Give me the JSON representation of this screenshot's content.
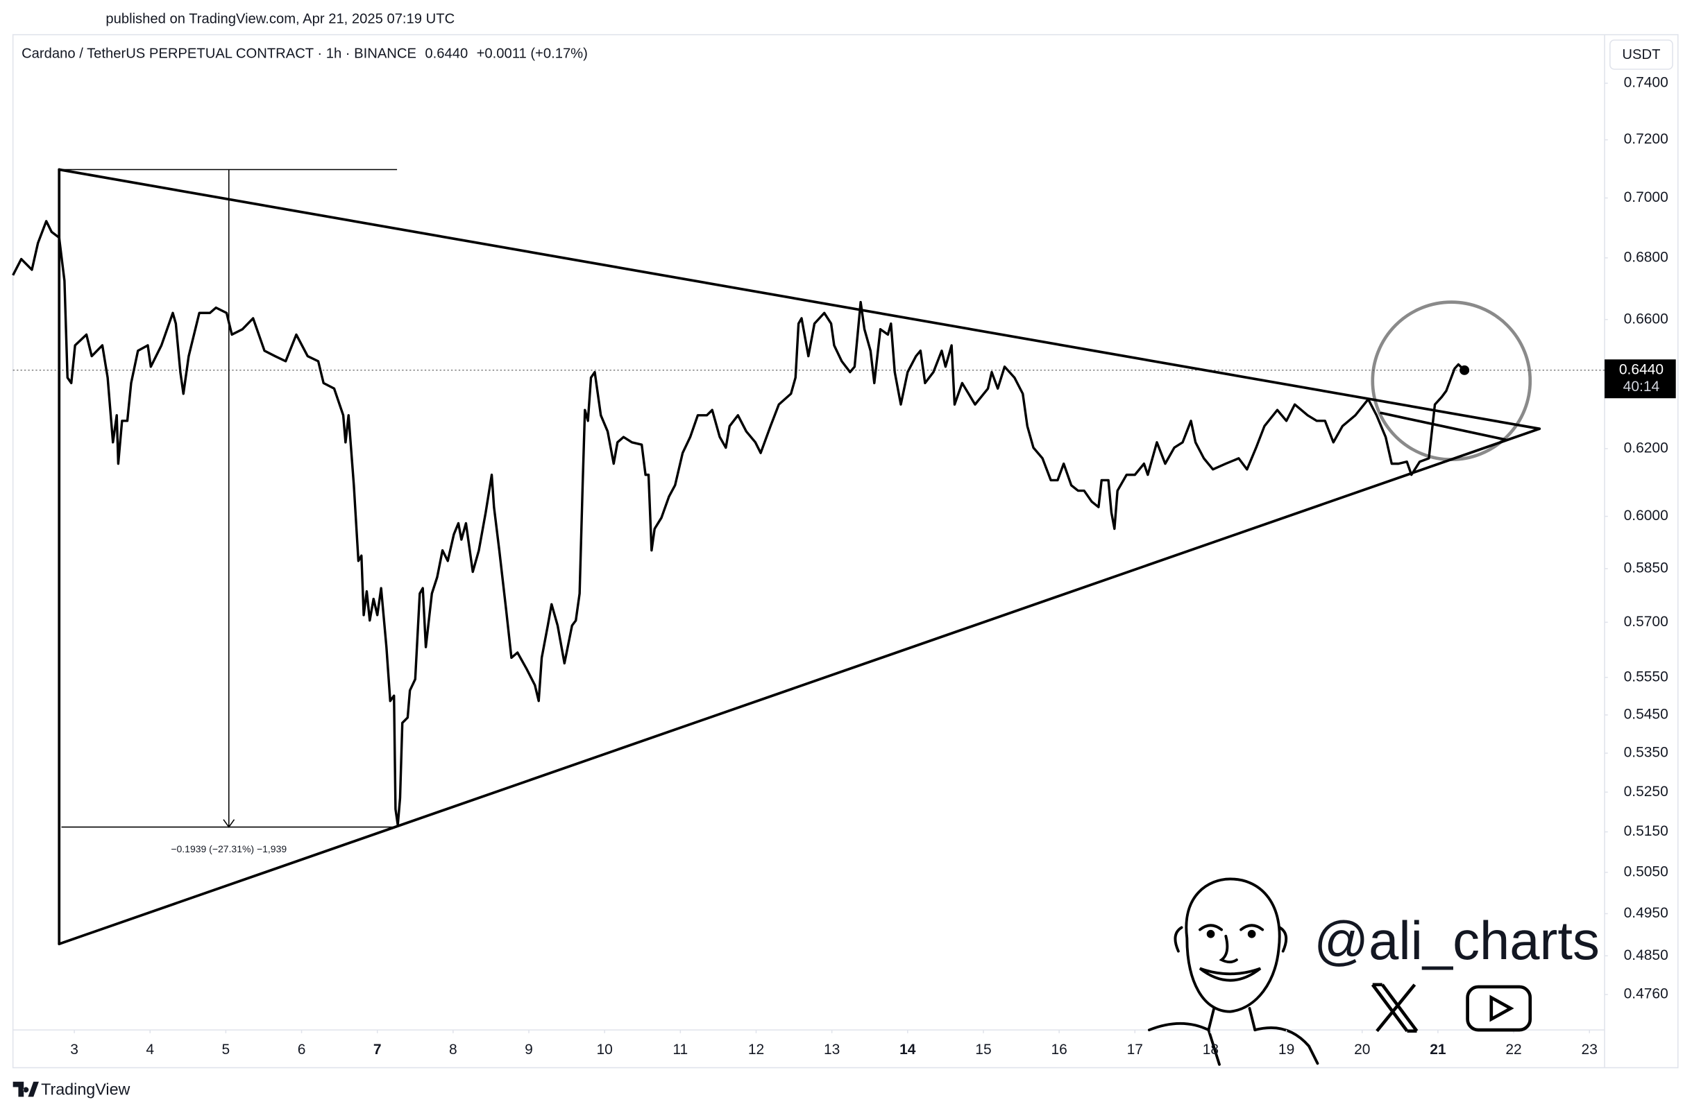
{
  "chart_data": {
    "type": "line",
    "published": "published on TradingView.com, Apr 21, 2025 07:19 UTC",
    "title": "Cardano / TetherUS PERPETUAL CONTRACT · 1h · BINANCE",
    "change": "+0.0011 (+0.17%)",
    "currency": "USDT",
    "countdown": "40:14",
    "watermark": "@ali_charts",
    "logo": "TradingView",
    "color": "#000000",
    "log_scale": true,
    "grid": false,
    "last_price": {
      "value": 0.644,
      "label": "0.6440"
    },
    "xlim": [
      2.19,
      23.2
    ],
    "ylim": [
      0.4679,
      0.7576
    ],
    "xticks": [
      3,
      4,
      5,
      6,
      7,
      8,
      9,
      10,
      11,
      12,
      13,
      14,
      15,
      16,
      17,
      18,
      19,
      20,
      21,
      22,
      23
    ],
    "xticks_bold": [
      7,
      14,
      21
    ],
    "yticks": [
      {
        "value": 0.74,
        "label": "0.7400"
      },
      {
        "value": 0.72,
        "label": "0.7200"
      },
      {
        "value": 0.7,
        "label": "0.7000"
      },
      {
        "value": 0.68,
        "label": "0.6800"
      },
      {
        "value": 0.66,
        "label": "0.6600"
      },
      {
        "value": 0.62,
        "label": "0.6200"
      },
      {
        "value": 0.6,
        "label": "0.6000"
      },
      {
        "value": 0.585,
        "label": "0.5850"
      },
      {
        "value": 0.57,
        "label": "0.5700"
      },
      {
        "value": 0.555,
        "label": "0.5550"
      },
      {
        "value": 0.545,
        "label": "0.5450"
      },
      {
        "value": 0.535,
        "label": "0.5350"
      },
      {
        "value": 0.525,
        "label": "0.5250"
      },
      {
        "value": 0.515,
        "label": "0.5150"
      },
      {
        "value": 0.505,
        "label": "0.5050"
      },
      {
        "value": 0.495,
        "label": "0.4950"
      },
      {
        "value": 0.485,
        "label": "0.4850"
      },
      {
        "value": 0.476,
        "label": "0.4760"
      }
    ],
    "x": [
      2.19,
      2.3,
      2.44,
      2.52,
      2.63,
      2.7,
      2.8,
      2.87,
      2.91,
      2.96,
      3.01,
      3.16,
      3.23,
      3.37,
      3.44,
      3.51,
      3.56,
      3.58,
      3.63,
      3.7,
      3.75,
      3.84,
      3.97,
      4.01,
      4.15,
      4.3,
      4.34,
      4.4,
      4.44,
      4.51,
      4.65,
      4.79,
      4.87,
      5.01,
      5.08,
      5.22,
      5.36,
      5.51,
      5.65,
      5.79,
      5.93,
      6.08,
      6.22,
      6.29,
      6.43,
      6.55,
      6.58,
      6.62,
      6.69,
      6.75,
      6.79,
      6.82,
      6.86,
      6.9,
      6.95,
      7.0,
      7.05,
      7.12,
      7.17,
      7.22,
      7.24,
      7.27,
      7.3,
      7.33,
      7.4,
      7.43,
      7.5,
      7.56,
      7.6,
      7.64,
      7.72,
      7.79,
      7.86,
      7.93,
      8.01,
      8.07,
      8.11,
      8.17,
      8.26,
      8.34,
      8.43,
      8.51,
      8.54,
      8.61,
      8.7,
      8.77,
      8.85,
      8.97,
      9.08,
      9.13,
      9.17,
      9.25,
      9.3,
      9.38,
      9.47,
      9.57,
      9.62,
      9.67,
      9.71,
      9.74,
      9.78,
      9.82,
      9.87,
      9.95,
      10.04,
      10.12,
      10.17,
      10.25,
      10.36,
      10.49,
      10.54,
      10.58,
      10.62,
      10.66,
      10.75,
      10.85,
      10.93,
      11.03,
      11.13,
      11.23,
      11.35,
      11.42,
      11.52,
      11.6,
      11.65,
      11.76,
      11.87,
      11.99,
      12.06,
      12.19,
      12.3,
      12.46,
      12.52,
      12.56,
      12.6,
      12.69,
      12.77,
      12.9,
      12.99,
      13.03,
      13.13,
      13.24,
      13.3,
      13.34,
      13.38,
      13.43,
      13.51,
      13.56,
      13.64,
      13.74,
      13.78,
      13.83,
      13.91,
      14.0,
      14.11,
      14.17,
      14.23,
      14.34,
      14.45,
      14.5,
      14.58,
      14.62,
      14.72,
      14.89,
      15.06,
      15.11,
      15.19,
      15.28,
      15.41,
      15.52,
      15.58,
      15.66,
      15.78,
      15.89,
      15.98,
      16.06,
      16.16,
      16.25,
      16.33,
      16.43,
      16.52,
      16.56,
      16.65,
      16.69,
      16.73,
      16.77,
      16.89,
      17.0,
      17.12,
      17.17,
      17.29,
      17.4,
      17.52,
      17.63,
      17.74,
      17.8,
      17.91,
      18.03,
      18.2,
      18.37,
      18.48,
      18.6,
      18.71,
      18.88,
      19.0,
      19.11,
      19.28,
      19.4,
      19.51,
      19.62,
      19.74,
      19.91,
      20.08,
      20.19,
      20.31,
      20.39,
      20.48,
      20.59,
      20.65,
      20.76,
      20.88,
      20.96,
      21.05,
      21.11,
      21.22,
      21.27,
      21.35
    ],
    "values": [
      0.6743,
      0.6796,
      0.6761,
      0.6849,
      0.6922,
      0.6886,
      0.6867,
      0.6725,
      0.6417,
      0.64,
      0.6518,
      0.6552,
      0.6484,
      0.6518,
      0.6417,
      0.6219,
      0.6301,
      0.6155,
      0.6284,
      0.6284,
      0.64,
      0.6501,
      0.6518,
      0.6451,
      0.6518,
      0.6621,
      0.6587,
      0.6434,
      0.6367,
      0.6484,
      0.6621,
      0.6621,
      0.6638,
      0.6621,
      0.6552,
      0.6569,
      0.6604,
      0.6501,
      0.6484,
      0.6468,
      0.6552,
      0.6484,
      0.6468,
      0.64,
      0.6383,
      0.6301,
      0.6219,
      0.6301,
      0.6091,
      0.5872,
      0.5887,
      0.572,
      0.5786,
      0.5705,
      0.5765,
      0.572,
      0.5795,
      0.5632,
      0.5487,
      0.5501,
      0.5207,
      0.5167,
      0.5235,
      0.5429,
      0.5443,
      0.5515,
      0.5545,
      0.578,
      0.5795,
      0.5632,
      0.578,
      0.5826,
      0.5902,
      0.5872,
      0.5948,
      0.598,
      0.5933,
      0.598,
      0.5841,
      0.5902,
      0.6011,
      0.6122,
      0.6027,
      0.5902,
      0.5735,
      0.5603,
      0.5617,
      0.5573,
      0.5529,
      0.5487,
      0.5603,
      0.5691,
      0.575,
      0.5691,
      0.5588,
      0.5691,
      0.5705,
      0.578,
      0.6091,
      0.6317,
      0.6284,
      0.6417,
      0.6434,
      0.6301,
      0.6252,
      0.6155,
      0.6219,
      0.6235,
      0.6219,
      0.6212,
      0.6122,
      0.6122,
      0.5902,
      0.5964,
      0.5996,
      0.6058,
      0.6091,
      0.6187,
      0.6235,
      0.6301,
      0.6301,
      0.6317,
      0.6235,
      0.6203,
      0.6268,
      0.6301,
      0.6252,
      0.6219,
      0.6187,
      0.6268,
      0.6334,
      0.6367,
      0.6417,
      0.6587,
      0.6604,
      0.6484,
      0.6587,
      0.6621,
      0.6587,
      0.6518,
      0.6468,
      0.6434,
      0.6451,
      0.6552,
      0.6656,
      0.6569,
      0.6501,
      0.64,
      0.6569,
      0.6552,
      0.6587,
      0.6434,
      0.6334,
      0.6434,
      0.6484,
      0.6501,
      0.64,
      0.6434,
      0.6501,
      0.6451,
      0.6518,
      0.6334,
      0.64,
      0.6334,
      0.6383,
      0.6434,
      0.6383,
      0.6451,
      0.6417,
      0.6367,
      0.6268,
      0.6203,
      0.6171,
      0.6106,
      0.6106,
      0.6155,
      0.6091,
      0.6075,
      0.6075,
      0.6043,
      0.6027,
      0.6106,
      0.6106,
      0.6011,
      0.5964,
      0.6075,
      0.6122,
      0.6122,
      0.6155,
      0.6122,
      0.6219,
      0.6155,
      0.6203,
      0.6219,
      0.6284,
      0.6219,
      0.6171,
      0.6138,
      0.6155,
      0.6171,
      0.6138,
      0.6203,
      0.6268,
      0.6317,
      0.6284,
      0.6334,
      0.6301,
      0.6284,
      0.6284,
      0.6219,
      0.6268,
      0.6301,
      0.635,
      0.6301,
      0.6235,
      0.6155,
      0.6155,
      0.6161,
      0.6122,
      0.6161,
      0.6171,
      0.6334,
      0.6357,
      0.6376,
      0.6445,
      0.6458,
      0.644
    ],
    "trendlines": [
      {
        "x": [
          2.8,
          22.34
        ],
        "values": [
          0.7097,
          0.626
        ]
      },
      {
        "x": [
          2.8,
          22.34
        ],
        "values": [
          0.4878,
          0.626
        ]
      },
      {
        "x": [
          2.8,
          2.8
        ],
        "values": [
          0.7097,
          0.4878
        ]
      },
      {
        "x": [
          20.25,
          21.89
        ],
        "values": [
          0.6308,
          0.6227
        ]
      }
    ],
    "measure_lines": [
      {
        "x": [
          2.8,
          7.26
        ],
        "values": [
          0.7097,
          0.7097
        ]
      },
      {
        "x": [
          2.83,
          7.26
        ],
        "values": [
          0.5162,
          0.5162
        ]
      }
    ],
    "measure": {
      "x": [
        5.04,
        5.04
      ],
      "values": [
        0.7097,
        0.5162
      ],
      "label": "−0.1939 (−27.31%) −1,939"
    }
  }
}
